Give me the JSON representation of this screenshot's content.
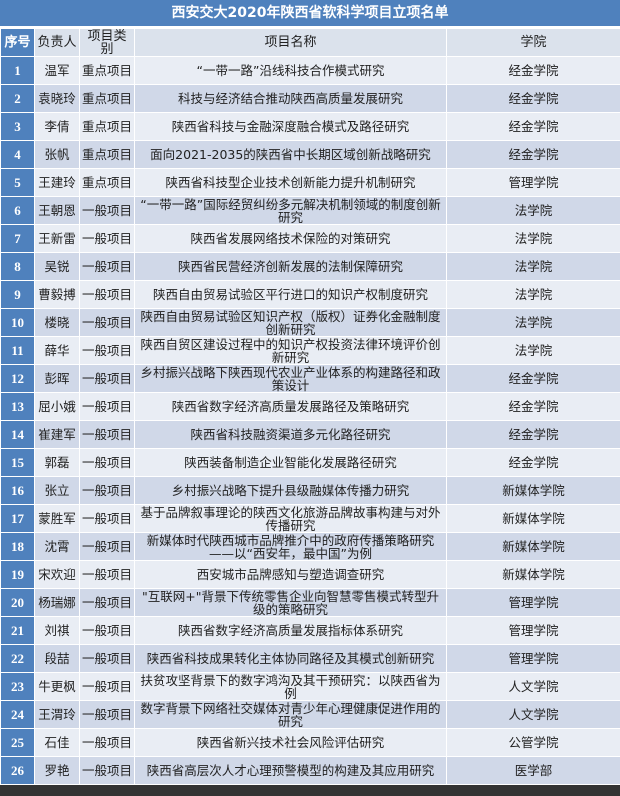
{
  "title": "西安交大2020年陕西省软科学项目立项名单",
  "colors": {
    "header_blue": "#4f81bd",
    "row_light": "#e9edf4",
    "row_dark": "#d0d8e8"
  },
  "headers": [
    "序号",
    "负责人",
    "项目类别",
    "项目名称",
    "学院"
  ],
  "rows": [
    [
      "1",
      "温军",
      "重点项目",
      "“一带一路”沿线科技合作模式研究",
      "经金学院"
    ],
    [
      "2",
      "袁晓玲",
      "重点项目",
      "科技与经济结合推动陕西高质量发展研究",
      "经金学院"
    ],
    [
      "3",
      "李倩",
      "重点项目",
      "陕西省科技与金融深度融合模式及路径研究",
      "经金学院"
    ],
    [
      "4",
      "张帆",
      "重点项目",
      "面向2021-2035的陕西省中长期区域创新战略研究",
      "经金学院"
    ],
    [
      "5",
      "王建玲",
      "重点项目",
      "陕西省科技型企业技术创新能力提升机制研究",
      "管理学院"
    ],
    [
      "6",
      "王朝恩",
      "一般项目",
      "“一带一路”国际经贸纠纷多元解决机制领域的制度创新研究",
      "法学院"
    ],
    [
      "7",
      "王新雷",
      "一般项目",
      "陕西省发展网络技术保险的对策研究",
      "法学院"
    ],
    [
      "8",
      "吴锐",
      "一般项目",
      "陕西省民营经济创新发展的法制保障研究",
      "法学院"
    ],
    [
      "9",
      "曹毅搏",
      "一般项目",
      "陕西自由贸易试验区平行进口的知识产权制度研究",
      "法学院"
    ],
    [
      "10",
      "楼晓",
      "一般项目",
      "陕西自由贸易试验区知识产权（版权）证券化金融制度创新研究",
      "法学院"
    ],
    [
      "11",
      "薛华",
      "一般项目",
      "陕西自贸区建设过程中的知识产权投资法律环境评价创新研究",
      "法学院"
    ],
    [
      "12",
      "彭晖",
      "一般项目",
      "乡村振兴战略下陕西现代农业产业体系的构建路径和政策设计",
      "经金学院"
    ],
    [
      "13",
      "屈小娥",
      "一般项目",
      "陕西省数字经济高质量发展路径及策略研究",
      "经金学院"
    ],
    [
      "14",
      "崔建军",
      "一般项目",
      "陕西省科技融资渠道多元化路径研究",
      "经金学院"
    ],
    [
      "15",
      "郭磊",
      "一般项目",
      "陕西装备制造企业智能化发展路径研究",
      "经金学院"
    ],
    [
      "16",
      "张立",
      "一般项目",
      "乡村振兴战略下提升县级融媒体传播力研究",
      "新媒体学院"
    ],
    [
      "17",
      "蒙胜军",
      "一般项目",
      "基于品牌叙事理论的陕西文化旅游品牌故事构建与对外传播研究",
      "新媒体学院"
    ],
    [
      "18",
      "沈霄",
      "一般项目",
      "新媒体时代陕西城市品牌推介中的政府传播策略研究——以“西安年，最中国”为例",
      "新媒体学院"
    ],
    [
      "19",
      "宋欢迎",
      "一般项目",
      "西安城市品牌感知与塑造调查研究",
      "新媒体学院"
    ],
    [
      "20",
      "杨瑞娜",
      "一般项目",
      "\"互联网+\"背景下传统零售企业向智慧零售模式转型升级的策略研究",
      "管理学院"
    ],
    [
      "21",
      "刘祺",
      "一般项目",
      "陕西省数字经济高质量发展指标体系研究",
      "管理学院"
    ],
    [
      "22",
      "段喆",
      "一般项目",
      "陕西省科技成果转化主体协同路径及其模式创新研究",
      "管理学院"
    ],
    [
      "23",
      "牛更枫",
      "一般项目",
      "扶贫攻坚背景下的数字鸿沟及其干预研究：以陕西省为例",
      "人文学院"
    ],
    [
      "24",
      "王渭玲",
      "一般项目",
      "数字背景下网络社交媒体对青少年心理健康促进作用的研究",
      "人文学院"
    ],
    [
      "25",
      "石佳",
      "一般项目",
      "陕西省新兴技术社会风险评估研究",
      "公管学院"
    ],
    [
      "26",
      "罗艳",
      "一般项目",
      "陕西省高层次人才心理预警模型的构建及其应用研究",
      "医学部"
    ]
  ]
}
